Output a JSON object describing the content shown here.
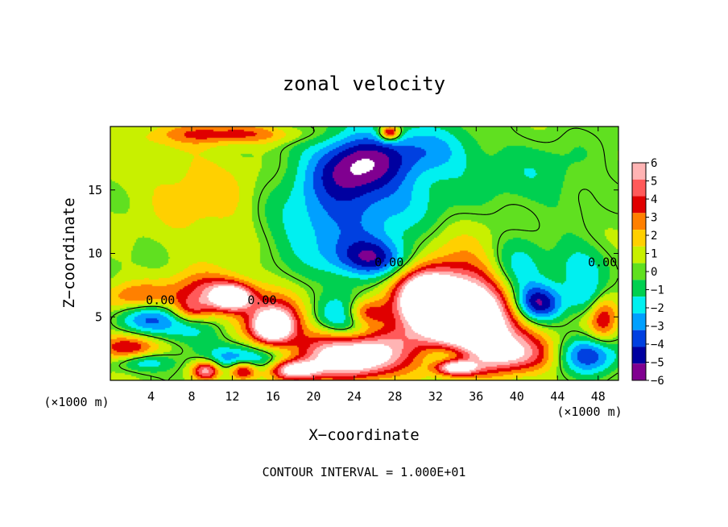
{
  "chart_data": {
    "type": "heatmap",
    "title": "zonal velocity",
    "xlabel": "X−coordinate",
    "ylabel": "Z−coordinate",
    "x_unit_left": "(×1000 m)",
    "x_unit_right": "(×1000 m)",
    "xlim": [
      0,
      50
    ],
    "ylim": [
      0,
      20
    ],
    "x_ticks": [
      "4",
      "8",
      "12",
      "16",
      "20",
      "24",
      "28",
      "32",
      "36",
      "40",
      "44",
      "48"
    ],
    "x_tick_values": [
      4,
      8,
      12,
      16,
      20,
      24,
      28,
      32,
      36,
      40,
      44,
      48
    ],
    "y_ticks": [
      "5",
      "10",
      "15"
    ],
    "y_tick_values": [
      5,
      10,
      15
    ],
    "colorbar": {
      "levels": [
        6,
        5,
        4,
        3,
        2,
        1,
        0,
        -1,
        -2,
        -3,
        -4,
        -5,
        -6
      ],
      "labels": [
        "6",
        "5",
        "4",
        "3",
        "2",
        "1",
        "0",
        "−1",
        "−2",
        "−3",
        "−4",
        "−5",
        "−6"
      ],
      "colors": [
        "#ffb4b4",
        "#ff5a5a",
        "#e00000",
        "#ff8000",
        "#ffd000",
        "#c8f000",
        "#60e020",
        "#00d050",
        "#00f0f0",
        "#00a0ff",
        "#0040e0",
        "#0000a0",
        "#800090"
      ],
      "below_min": "#ffffff",
      "above_max": "#ffffff"
    },
    "contour_labels": [
      "0.00",
      "0.00",
      "0.00",
      "0.00"
    ],
    "contour_interval_text": "CONTOUR INTERVAL = 1.000E+01",
    "blobs": [
      {
        "x": 25,
        "y": 14.5,
        "rx": 8,
        "ry": 5,
        "v": -3.5
      },
      {
        "x": 26,
        "y": 9.5,
        "rx": 4,
        "ry": 1.6,
        "v": -5.2
      },
      {
        "x": 24,
        "y": 17,
        "rx": 4,
        "ry": 2.5,
        "v": -4
      },
      {
        "x": 31,
        "y": 18,
        "rx": 5,
        "ry": 2,
        "v": -2.5
      },
      {
        "x": 20,
        "y": 12,
        "rx": 5,
        "ry": 3,
        "v": -1.5
      },
      {
        "x": 42,
        "y": 16,
        "rx": 6,
        "ry": 3,
        "v": -1.5
      },
      {
        "x": 40,
        "y": 8.5,
        "rx": 3,
        "ry": 2.5,
        "v": -4
      },
      {
        "x": 42,
        "y": 6,
        "rx": 2.5,
        "ry": 1.5,
        "v": -6.5
      },
      {
        "x": 46,
        "y": 9,
        "rx": 3,
        "ry": 2,
        "v": -2.5
      },
      {
        "x": 10,
        "y": 14,
        "rx": 6,
        "ry": 4,
        "v": 1.6
      },
      {
        "x": 5,
        "y": 17,
        "rx": 6,
        "ry": 3,
        "v": 0.6
      },
      {
        "x": 12,
        "y": 19.4,
        "rx": 7,
        "ry": 0.8,
        "v": 3.5
      },
      {
        "x": 27.5,
        "y": 19.5,
        "rx": 1,
        "ry": 0.6,
        "v": 6.5
      },
      {
        "x": 35,
        "y": 5,
        "rx": 5,
        "ry": 2.5,
        "v": 7
      },
      {
        "x": 31,
        "y": 6.5,
        "rx": 3,
        "ry": 2,
        "v": 7
      },
      {
        "x": 34,
        "y": 7,
        "rx": 7,
        "ry": 4,
        "v": 4.5
      },
      {
        "x": 39,
        "y": 2,
        "rx": 5,
        "ry": 1.5,
        "v": 5
      },
      {
        "x": 36,
        "y": 3,
        "rx": 4,
        "ry": 2,
        "v": 3
      },
      {
        "x": 24,
        "y": 5,
        "rx": 3.2,
        "ry": 1.8,
        "v": -6
      },
      {
        "x": 25,
        "y": 5.3,
        "rx": 2.2,
        "ry": 1.2,
        "v": 7
      },
      {
        "x": 24,
        "y": 1.5,
        "rx": 5,
        "ry": 1.5,
        "v": 7
      },
      {
        "x": 24,
        "y": 3,
        "rx": 6,
        "ry": 1.5,
        "v": 4
      },
      {
        "x": 16,
        "y": 4.2,
        "rx": 2,
        "ry": 1.3,
        "v": 7
      },
      {
        "x": 16,
        "y": 5,
        "rx": 3,
        "ry": 2,
        "v": 4
      },
      {
        "x": 12,
        "y": 6.5,
        "rx": 2,
        "ry": 1,
        "v": 7
      },
      {
        "x": 10,
        "y": 7,
        "rx": 4,
        "ry": 1.5,
        "v": 4
      },
      {
        "x": 3,
        "y": 6.5,
        "rx": 4,
        "ry": 1.2,
        "v": 3.5
      },
      {
        "x": 4,
        "y": 5,
        "rx": 3,
        "ry": 1.5,
        "v": -4.5
      },
      {
        "x": 8,
        "y": 4,
        "rx": 3,
        "ry": 1.5,
        "v": -2
      },
      {
        "x": 2,
        "y": 2.5,
        "rx": 3,
        "ry": 1.2,
        "v": 5
      },
      {
        "x": 3,
        "y": 1.5,
        "rx": 3,
        "ry": 0.8,
        "v": -4
      },
      {
        "x": 13,
        "y": 1.5,
        "rx": 4,
        "ry": 1.2,
        "v": -4.5
      },
      {
        "x": 13,
        "y": 0.8,
        "rx": 1.5,
        "ry": 0.8,
        "v": 7
      },
      {
        "x": 18,
        "y": 0.8,
        "rx": 2.5,
        "ry": 0.8,
        "v": 7
      },
      {
        "x": 9.5,
        "y": 0.8,
        "rx": 1.5,
        "ry": 0.8,
        "v": 7
      },
      {
        "x": 34,
        "y": 2,
        "rx": 3,
        "ry": 1.2,
        "v": -4
      },
      {
        "x": 34,
        "y": 1,
        "rx": 2,
        "ry": 0.6,
        "v": 7
      },
      {
        "x": 47,
        "y": 2,
        "rx": 3,
        "ry": 1.5,
        "v": -5
      },
      {
        "x": 48.5,
        "y": 5,
        "rx": 1.5,
        "ry": 2,
        "v": 4
      },
      {
        "x": 47,
        "y": 6.5,
        "rx": 2,
        "ry": 1.5,
        "v": -2.5
      },
      {
        "x": 8,
        "y": 5.5,
        "rx": 2,
        "ry": 1,
        "v": 4
      }
    ]
  }
}
